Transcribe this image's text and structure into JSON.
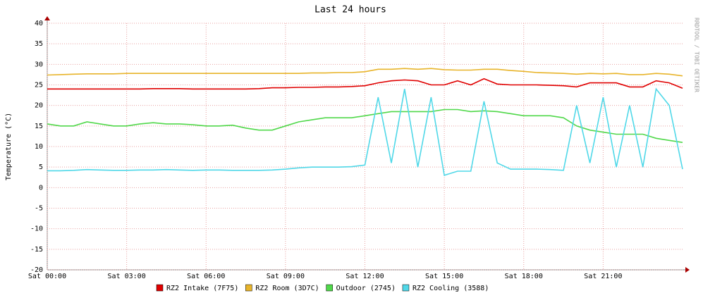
{
  "chart_data": {
    "type": "line",
    "title": "Last 24 hours",
    "y_label": "Temperature (°C)",
    "watermark": "RRDTOOL / TOBI OETIKER",
    "x": [
      0,
      0.5,
      1,
      1.5,
      2,
      2.5,
      3,
      3.5,
      4,
      4.5,
      5,
      5.5,
      6,
      6.5,
      7,
      7.5,
      8,
      8.5,
      9,
      9.5,
      10,
      10.5,
      11,
      11.5,
      12,
      12.5,
      13,
      13.5,
      14,
      14.5,
      15,
      15.5,
      16,
      16.5,
      17,
      17.5,
      18,
      18.5,
      19,
      19.5,
      20,
      20.5,
      21,
      21.5,
      22,
      22.5,
      23,
      23.5,
      24
    ],
    "xlim": [
      0,
      24
    ],
    "xticks": [
      {
        "value": 0,
        "label": "Sat 00:00"
      },
      {
        "value": 3,
        "label": "Sat 03:00"
      },
      {
        "value": 6,
        "label": "Sat 06:00"
      },
      {
        "value": 9,
        "label": "Sat 09:00"
      },
      {
        "value": 12,
        "label": "Sat 12:00"
      },
      {
        "value": 15,
        "label": "Sat 15:00"
      },
      {
        "value": 18,
        "label": "Sat 18:00"
      },
      {
        "value": 21,
        "label": "Sat 21:00"
      }
    ],
    "ylim": [
      -20,
      40
    ],
    "yticks": [
      -20,
      -15,
      -10,
      -5,
      0,
      5,
      10,
      15,
      20,
      25,
      30,
      35,
      40
    ],
    "grid": true,
    "series": [
      {
        "name": "RZ2 Intake (7F75)",
        "color": "#e00000",
        "values": [
          24,
          24,
          24,
          24,
          24,
          24,
          24,
          24,
          24.1,
          24.1,
          24.1,
          24,
          24,
          24,
          24,
          24,
          24.1,
          24.3,
          24.3,
          24.4,
          24.4,
          24.5,
          24.5,
          24.6,
          24.8,
          25.5,
          26,
          26.2,
          26,
          25,
          25,
          26,
          25,
          26.5,
          25.2,
          25,
          25,
          25,
          24.9,
          24.8,
          24.5,
          25.5,
          25.5,
          25.5,
          24.5,
          24.5,
          26,
          25.5,
          24.2
        ]
      },
      {
        "name": "RZ2 Room (3D7C)",
        "color": "#e8b42a",
        "values": [
          27.4,
          27.5,
          27.6,
          27.7,
          27.7,
          27.7,
          27.8,
          27.8,
          27.8,
          27.8,
          27.8,
          27.8,
          27.8,
          27.8,
          27.8,
          27.8,
          27.8,
          27.8,
          27.8,
          27.8,
          27.9,
          27.9,
          28,
          28,
          28.2,
          28.8,
          28.8,
          29,
          28.8,
          29,
          28.7,
          28.6,
          28.6,
          28.8,
          28.8,
          28.5,
          28.3,
          28,
          27.9,
          27.8,
          27.6,
          27.8,
          27.7,
          27.8,
          27.5,
          27.5,
          27.8,
          27.6,
          27.2
        ]
      },
      {
        "name": "Outdoor (2745)",
        "color": "#50d84a",
        "values": [
          15.5,
          15,
          15,
          16,
          15.5,
          15,
          15,
          15.5,
          15.8,
          15.5,
          15.5,
          15.3,
          15,
          15,
          15.2,
          14.5,
          14,
          14,
          15,
          16,
          16.5,
          17,
          17,
          17,
          17.5,
          18,
          18.5,
          18.5,
          18.5,
          18.5,
          19,
          19,
          18.5,
          18.7,
          18.5,
          18,
          17.5,
          17.5,
          17.5,
          17,
          15,
          14,
          13.5,
          13,
          13,
          13,
          12,
          11.5,
          11
        ]
      },
      {
        "name": "RZ2 Cooling (3588)",
        "color": "#50d8e8",
        "values": [
          4.1,
          4.1,
          4.2,
          4.4,
          4.3,
          4.2,
          4.2,
          4.3,
          4.3,
          4.4,
          4.3,
          4.2,
          4.3,
          4.3,
          4.2,
          4.2,
          4.2,
          4.3,
          4.5,
          4.8,
          5,
          5,
          5,
          5.1,
          5.5,
          22,
          6,
          24,
          5,
          22,
          3,
          4,
          4,
          21,
          6,
          4.5,
          4.5,
          4.5,
          4.4,
          4.2,
          20,
          6,
          22,
          5,
          20,
          5,
          24,
          20,
          4.5
        ]
      }
    ]
  }
}
